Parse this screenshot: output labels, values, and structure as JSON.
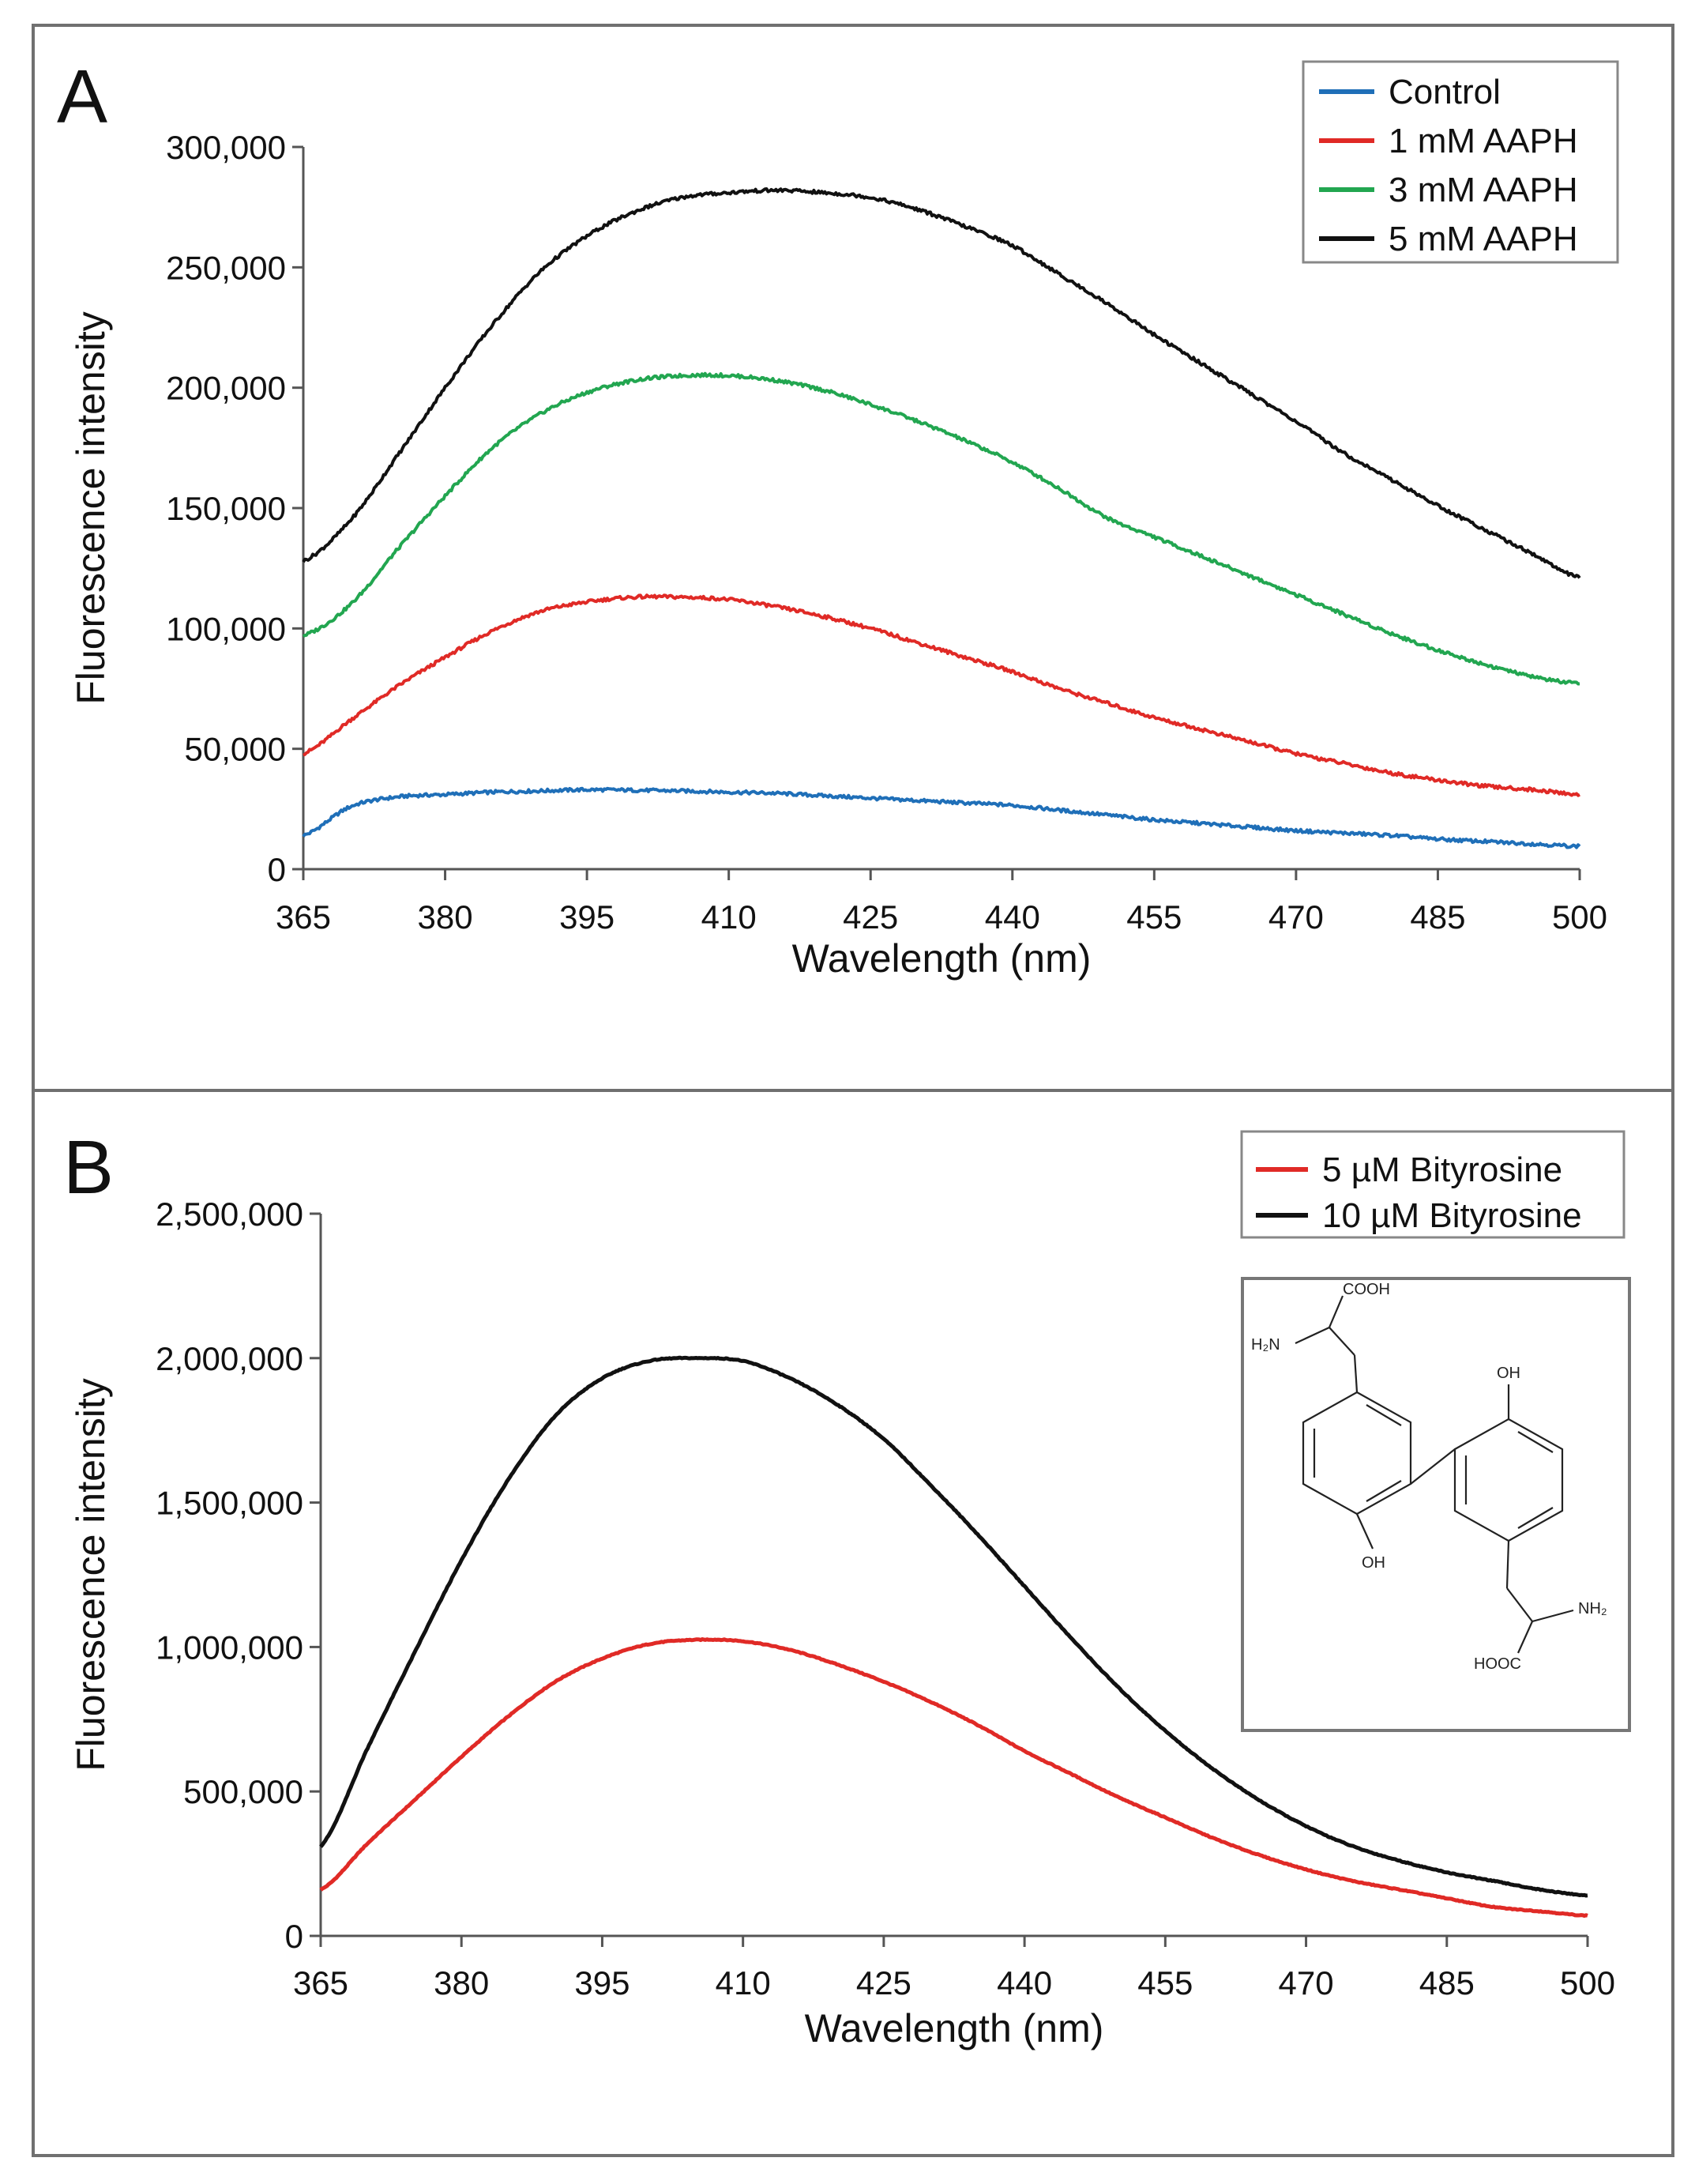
{
  "chart_data": [
    {
      "type": "line",
      "panel": "A",
      "title": "",
      "xlabel": "Wavelength (nm)",
      "ylabel": "Fluorescence intensity",
      "xlim": [
        365,
        500
      ],
      "ylim": [
        0,
        300000
      ],
      "x_ticks": [
        365,
        380,
        395,
        410,
        425,
        440,
        455,
        470,
        485,
        500
      ],
      "y_ticks": [
        0,
        50000,
        100000,
        150000,
        200000,
        250000,
        300000
      ],
      "y_tick_labels": [
        "0",
        "50,000",
        "100,000",
        "150,000",
        "200,000",
        "250,000",
        "300,000"
      ],
      "x_tick_labels": [
        "365",
        "380",
        "395",
        "410",
        "425",
        "440",
        "455",
        "470",
        "485",
        "500"
      ],
      "legend_position": "top-right",
      "x": [
        365,
        370,
        375,
        380,
        385,
        390,
        395,
        400,
        405,
        410,
        415,
        420,
        425,
        430,
        435,
        440,
        445,
        450,
        455,
        460,
        465,
        470,
        475,
        480,
        485,
        490,
        495,
        500
      ],
      "series": [
        {
          "name": "Control",
          "color": "#1f6fb8",
          "values": [
            14000,
            26000,
            30000,
            31000,
            32000,
            32500,
            33000,
            32800,
            32500,
            32000,
            31500,
            30500,
            29500,
            28500,
            27500,
            26500,
            24500,
            22500,
            20500,
            19000,
            17500,
            16000,
            15000,
            14000,
            12500,
            11500,
            10500,
            9500
          ]
        },
        {
          "name": "1 mM AAPH",
          "color": "#e02a26",
          "values": [
            48000,
            62000,
            76000,
            88000,
            99000,
            107000,
            111000,
            113000,
            113000,
            112000,
            109000,
            105000,
            100000,
            94000,
            88000,
            82000,
            75000,
            69000,
            63000,
            58000,
            53000,
            48000,
            44000,
            40000,
            37000,
            34500,
            33000,
            31000
          ]
        },
        {
          "name": "3 mM AAPH",
          "color": "#22a650",
          "values": [
            97000,
            110000,
            133000,
            155000,
            175000,
            189000,
            198000,
            203000,
            205000,
            205000,
            203000,
            199000,
            193000,
            186000,
            178000,
            169000,
            158000,
            146000,
            138000,
            130000,
            122000,
            114000,
            106000,
            98000,
            91000,
            85000,
            80000,
            77000
          ]
        },
        {
          "name": "5 mM AAPH",
          "color": "#111111",
          "values": [
            128000,
            145000,
            172000,
            200000,
            226000,
            248000,
            263000,
            273000,
            279000,
            281000,
            282000,
            281000,
            279000,
            274000,
            267000,
            259000,
            247000,
            235000,
            222000,
            210000,
            198000,
            186000,
            173000,
            162000,
            151000,
            141000,
            131000,
            121000
          ]
        }
      ]
    },
    {
      "type": "line",
      "panel": "B",
      "title": "",
      "xlabel": "Wavelength (nm)",
      "ylabel": "Fluorescence intensity",
      "xlim": [
        365,
        500
      ],
      "ylim": [
        0,
        2500000
      ],
      "x_ticks": [
        365,
        380,
        395,
        410,
        425,
        440,
        455,
        470,
        485,
        500
      ],
      "y_ticks": [
        0,
        500000,
        1000000,
        1500000,
        2000000,
        2500000
      ],
      "y_tick_labels": [
        "0",
        "500,000",
        "1,000,000",
        "1,500,000",
        "2,000,000",
        "2,500,000"
      ],
      "x_tick_labels": [
        "365",
        "380",
        "395",
        "410",
        "425",
        "440",
        "455",
        "470",
        "485",
        "500"
      ],
      "legend_position": "top-right",
      "x": [
        365,
        370,
        375,
        380,
        385,
        390,
        395,
        400,
        405,
        410,
        415,
        420,
        425,
        430,
        435,
        440,
        445,
        450,
        455,
        460,
        465,
        470,
        475,
        480,
        485,
        490,
        495,
        500
      ],
      "series": [
        {
          "name": "5 µM Bityrosine",
          "color": "#e02a26",
          "values": [
            160000,
            320000,
            470000,
            620000,
            760000,
            880000,
            960000,
            1010000,
            1025000,
            1020000,
            990000,
            940000,
            880000,
            810000,
            730000,
            640000,
            560000,
            480000,
            410000,
            340000,
            280000,
            230000,
            190000,
            160000,
            130000,
            100000,
            85000,
            70000
          ]
        },
        {
          "name": "10 µM Bityrosine",
          "color": "#111111",
          "values": [
            310000,
            650000,
            980000,
            1300000,
            1580000,
            1800000,
            1930000,
            1990000,
            2000000,
            1990000,
            1930000,
            1840000,
            1720000,
            1560000,
            1390000,
            1210000,
            1030000,
            860000,
            710000,
            580000,
            470000,
            380000,
            310000,
            260000,
            220000,
            190000,
            160000,
            140000
          ]
        }
      ]
    }
  ],
  "panels": {
    "a_letter": "A",
    "b_letter": "B"
  },
  "structure_labels": {
    "cooh_top": "COOH",
    "h2n": "H₂N",
    "oh_right": "OH",
    "oh_left": "OH",
    "nh2": "NH₂",
    "hooc_bottom": "HOOC"
  }
}
